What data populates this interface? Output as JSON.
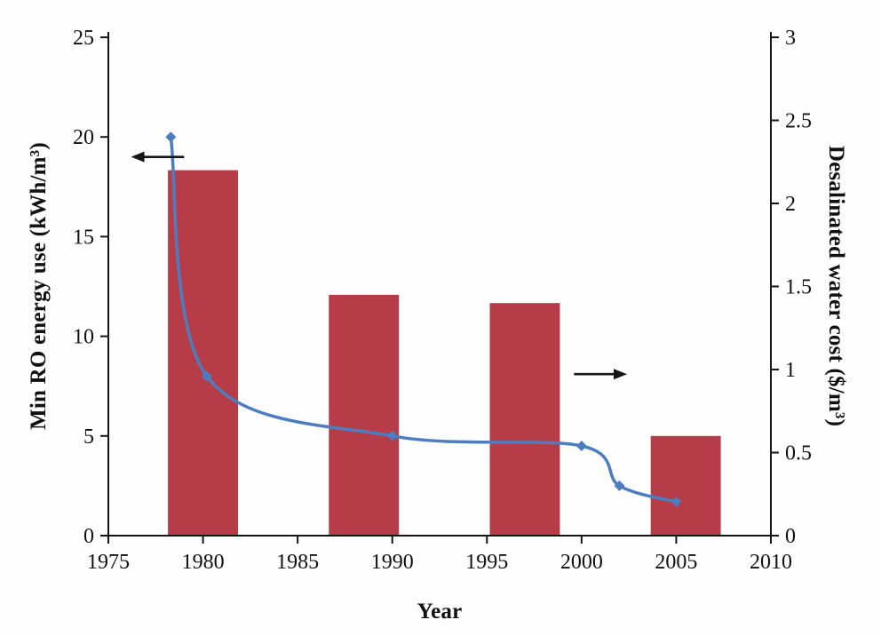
{
  "chart_data": {
    "type": "bar",
    "subtype": "bar-and-smooth-line-dual-axis",
    "grid": false,
    "legend": "none",
    "x_axis": {
      "label": "Year",
      "min": 1975,
      "max": 2010,
      "ticks": [
        1975,
        1980,
        1985,
        1990,
        1995,
        2000,
        2005,
        2010
      ]
    },
    "left_axis": {
      "label": "Min RO energy use (kWh/m³)",
      "min": 0,
      "max": 25,
      "ticks": [
        0,
        5,
        10,
        15,
        20,
        25
      ]
    },
    "right_axis": {
      "label": "Desalinated water cost ($/m³)",
      "min": 0,
      "max": 3,
      "ticks": [
        0,
        0.5,
        1,
        1.5,
        2,
        2.5,
        3
      ]
    },
    "bars": {
      "name": "Desalinated water cost ($/m³)",
      "axis": "right",
      "color": "#b63d47",
      "bar_width_years": 3.7,
      "points": [
        {
          "year": 1980,
          "value": 2.2
        },
        {
          "year": 1988.5,
          "value": 1.45
        },
        {
          "year": 1997,
          "value": 1.4
        },
        {
          "year": 2005.5,
          "value": 0.6
        }
      ]
    },
    "line": {
      "name": "Min RO energy use (kWh/m³)",
      "axis": "left",
      "color": "#4b7dc0",
      "marker": "diamond",
      "smooth": true,
      "points": [
        {
          "year": 1978.3,
          "value": 20
        },
        {
          "year": 1980.2,
          "value": 8
        },
        {
          "year": 1990,
          "value": 5
        },
        {
          "year": 2000,
          "value": 4.5
        },
        {
          "year": 2002,
          "value": 2.5
        },
        {
          "year": 2005,
          "value": 1.7
        }
      ]
    },
    "annotations": [
      {
        "type": "arrow",
        "direction": "left",
        "points_to_axis": "left",
        "y": 19,
        "x_from": 1979.0,
        "x_to": 1976.2
      },
      {
        "type": "arrow",
        "direction": "right",
        "points_to_axis": "right",
        "y": 8.1,
        "x_from": 1999.6,
        "x_to": 2002.4
      }
    ]
  }
}
